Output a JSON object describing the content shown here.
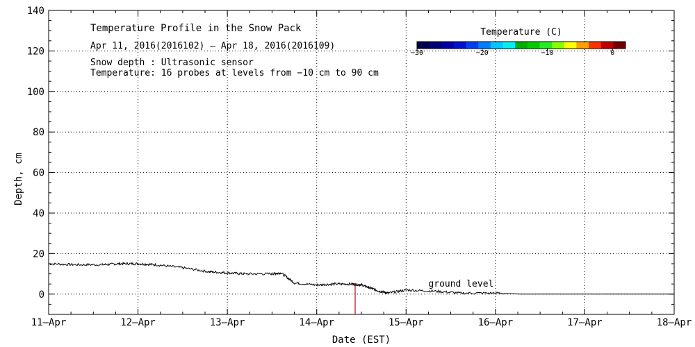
{
  "chart_data": {
    "type": "line",
    "title": "Temperature Profile in the Snow Pack",
    "subtitle": "Apr 11, 2016(2016102) – Apr 18, 2016(2016109)",
    "notes": [
      "Snow depth : Ultrasonic sensor",
      "Temperature: 16 probes at levels from −10 cm to 90 cm"
    ],
    "xlabel": "Date (EST)",
    "ylabel": "Depth, cm",
    "x_ticks": [
      "11–Apr",
      "12–Apr",
      "13–Apr",
      "14–Apr",
      "15–Apr",
      "16–Apr",
      "17–Apr",
      "18–Apr"
    ],
    "xlim": [
      0,
      7
    ],
    "ylim": [
      -10,
      140
    ],
    "y_ticks": [
      0,
      20,
      40,
      60,
      80,
      100,
      120,
      140
    ],
    "grid": true,
    "series": [
      {
        "name": "Snow depth",
        "color": "#000000",
        "x": [
          0,
          0.3,
          0.6,
          0.8,
          1.0,
          1.2,
          1.5,
          1.8,
          2.0,
          2.2,
          2.5,
          2.6,
          2.75,
          3.0,
          3.2,
          3.4,
          3.5,
          3.6,
          3.7,
          3.8,
          4.0,
          4.3,
          4.6,
          5.0,
          5.3,
          5.5,
          5.8,
          6.0,
          6.5,
          7.0
        ],
        "values": [
          15,
          14.5,
          14.5,
          15,
          15,
          14.5,
          13,
          11,
          10.5,
          10,
          10,
          10.5,
          5.5,
          4.5,
          5,
          5,
          4.5,
          3,
          1.5,
          0.5,
          2,
          1.5,
          0.5,
          0.5,
          0,
          0,
          0,
          0,
          0,
          0
        ]
      }
    ],
    "marker_line": {
      "x": 3.43,
      "y_from": -10,
      "y_to": 5,
      "color": "#cc0000"
    },
    "annotation": {
      "text": "ground level",
      "x": 4.25,
      "y": 2
    },
    "colorbar": {
      "title": "Temperature (C)",
      "range": [
        -30,
        2
      ],
      "ticks": [
        -30,
        -20,
        -10,
        0
      ],
      "tick_labels": [
        "−30",
        "−20",
        "−10",
        "0"
      ],
      "colors": [
        "#000050",
        "#00007a",
        "#0000a8",
        "#0010d0",
        "#0040f0",
        "#0080ff",
        "#00c8ff",
        "#00f0f0",
        "#00b000",
        "#00cc00",
        "#22ee22",
        "#88ff00",
        "#ffff00",
        "#ffa000",
        "#ff3000",
        "#c00000",
        "#700000"
      ]
    }
  }
}
